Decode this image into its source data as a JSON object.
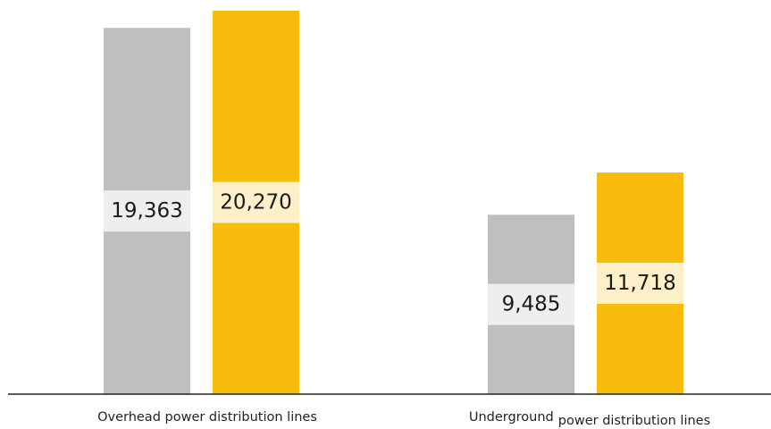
{
  "chart_data": {
    "type": "bar",
    "categories": [
      "Overhead power distribution lines",
      "Underground power distribution lines"
    ],
    "category_label_parts": [
      [
        "Overhead power distribution lines"
      ],
      [
        "Underground",
        "power distribution lines"
      ]
    ],
    "series": [
      {
        "values": [
          19363,
          9485
        ],
        "color": "#bfbfbf",
        "label_bg": "#eeeeee"
      },
      {
        "values": [
          20270,
          11718
        ],
        "color": "#f8bd0c",
        "label_bg": "#fdf0c8"
      }
    ],
    "value_labels": [
      [
        "19,363",
        "9,485"
      ],
      [
        "20,270",
        "11,718"
      ]
    ],
    "ylim": [
      0,
      21000
    ],
    "grid": false,
    "legend": "none"
  }
}
